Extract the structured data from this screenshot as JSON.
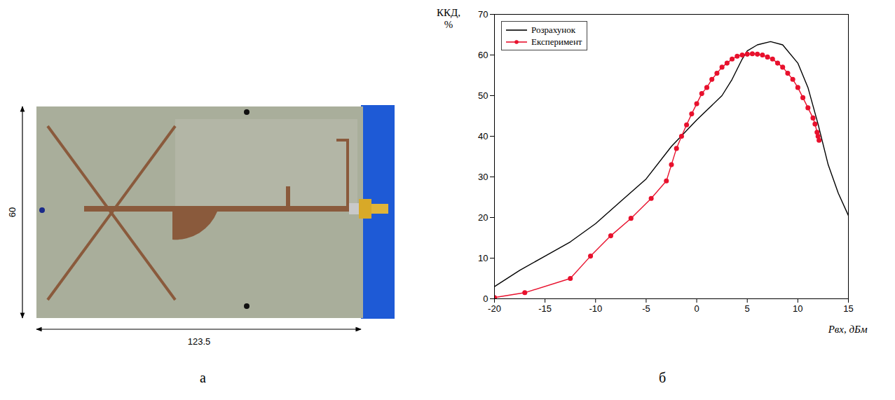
{
  "panel_labels": [
    "а",
    "б"
  ],
  "photo": {
    "height_label": "60",
    "width_label": "123.5"
  },
  "chart_data": {
    "type": "line",
    "x_label": "Pвх, дБм",
    "y_label": "ККД, %",
    "xlim": [
      -20,
      15
    ],
    "xticks": [
      -20,
      -15,
      -10,
      -5,
      0,
      5,
      10,
      15
    ],
    "ylim": [
      0,
      70
    ],
    "yticks": [
      0,
      10,
      20,
      30,
      40,
      50,
      60,
      70
    ],
    "grid": false,
    "legend": "upper left",
    "series": [
      {
        "name": "Розрахунок",
        "color": "#000000",
        "marker": "none",
        "line_style": "solid",
        "x": [
          -20,
          -17.5,
          -15,
          -12.5,
          -10,
          -7.5,
          -5,
          -2.5,
          0,
          2.5,
          3.5,
          4.5,
          5,
          6,
          7.3,
          8.5,
          10,
          11,
          12,
          13,
          14,
          15
        ],
        "values": [
          3,
          7,
          10.5,
          14,
          18.5,
          24,
          29.5,
          37.5,
          44,
          50,
          54,
          59,
          61,
          62.5,
          63.3,
          62.5,
          58,
          52,
          43,
          33,
          26,
          20.5
        ]
      },
      {
        "name": "Експеримент",
        "color": "#e8112d",
        "marker": "circle",
        "line_style": "solid",
        "x": [
          -20,
          -17,
          -12.5,
          -10.5,
          -8.5,
          -6.5,
          -4.5,
          -3,
          -2.5,
          -2,
          -1.5,
          -1,
          -0.5,
          0,
          0.5,
          1,
          1.5,
          2,
          2.5,
          3,
          3.5,
          4,
          4.5,
          5,
          5.5,
          6,
          6.5,
          7,
          7.5,
          8,
          8.5,
          9,
          9.5,
          10,
          10.5,
          11,
          11.5,
          11.7,
          11.9,
          12,
          12.1
        ],
        "values": [
          0.3,
          1.5,
          5,
          10.5,
          15.5,
          19.8,
          24.7,
          29,
          33,
          37,
          40,
          42.8,
          45.5,
          48,
          50.5,
          52,
          54,
          55.5,
          57,
          58,
          59,
          59.7,
          60,
          60.2,
          60.3,
          60.2,
          60,
          59.5,
          59,
          58,
          57,
          55.5,
          54,
          52,
          49.5,
          47,
          44.5,
          43,
          41,
          40,
          39
        ]
      }
    ]
  }
}
